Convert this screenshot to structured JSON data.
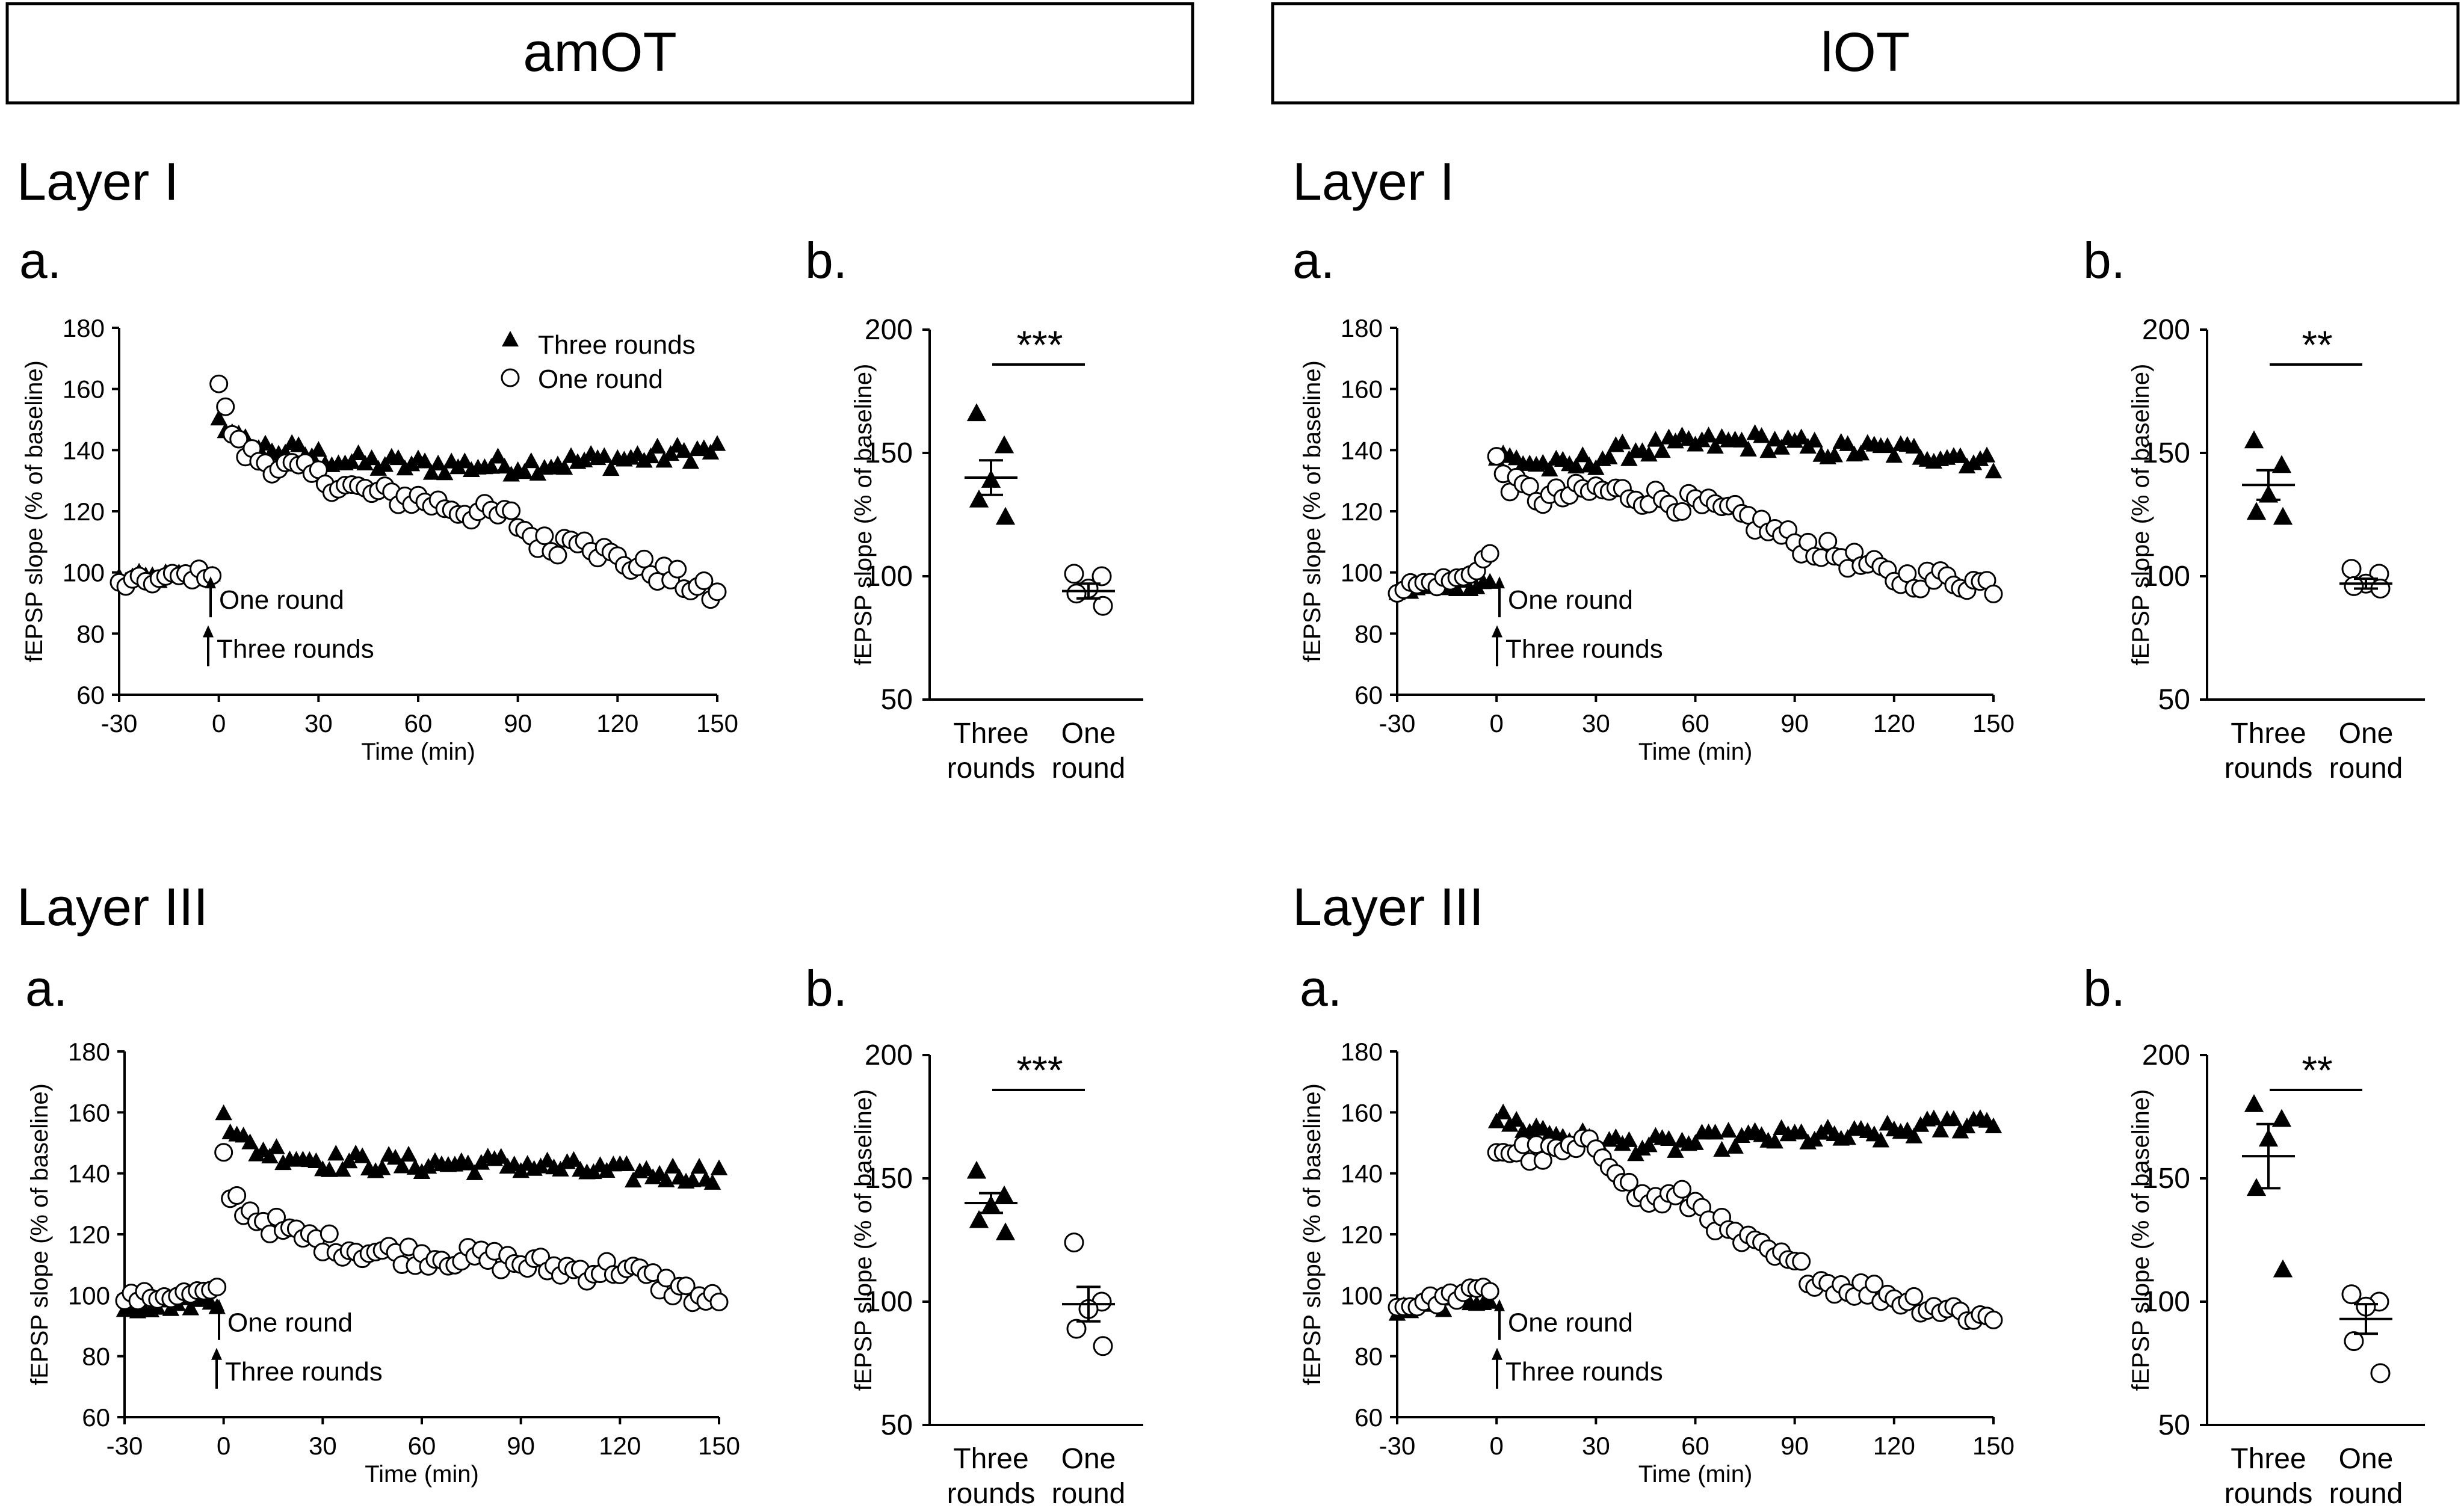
{
  "headers": [
    "amOT",
    "lOT"
  ],
  "layer_labels": [
    "Layer I",
    "Layer III"
  ],
  "panel_letters": {
    "a": "a.",
    "b": "b."
  },
  "legend": {
    "three": "Three rounds",
    "one": "One round"
  },
  "annotations": {
    "one_round": "One round",
    "three_rounds": "Three rounds"
  },
  "chart_data": [
    {
      "id": "amOT-I-a",
      "type": "scatter",
      "region": "amOT",
      "layer": "Layer I",
      "panel": "a.",
      "xlabel": "Time (min)",
      "ylabel": "fEPSP slope (% of baseline)",
      "xlim": [
        -30,
        150
      ],
      "ylim": [
        60,
        180
      ],
      "xticks": [
        "-30",
        "0",
        "30",
        "60",
        "90",
        "120",
        "150"
      ],
      "yticks": [
        "60",
        "80",
        "100",
        "120",
        "140",
        "160",
        "180"
      ],
      "series": [
        {
          "name": "Three rounds",
          "marker": "filled-triangle",
          "baseline": [
            [
              -30,
              98
            ],
            [
              -2,
              99
            ]
          ],
          "segments": [
            [
              0,
              152
            ],
            [
              4,
              144
            ],
            [
              10,
              141
            ],
            [
              20,
              140
            ],
            [
              40,
              136
            ],
            [
              60,
              135
            ],
            [
              90,
              135
            ],
            [
              120,
              137
            ],
            [
              150,
              140
            ]
          ]
        },
        {
          "name": "One round",
          "marker": "open-circle",
          "baseline": [
            [
              -30,
              96
            ],
            [
              -2,
              100
            ]
          ],
          "segments": [
            [
              0,
              162
            ],
            [
              2,
              152
            ],
            [
              6,
              141
            ],
            [
              12,
              137
            ],
            [
              30,
              131
            ],
            [
              45,
              126
            ],
            [
              60,
              124
            ],
            [
              75,
              120
            ],
            [
              88,
              118
            ],
            [
              95,
              111
            ],
            [
              100,
              108
            ],
            [
              105,
              111
            ],
            [
              110,
              113
            ],
            [
              113,
              108
            ],
            [
              120,
              104
            ],
            [
              135,
              99
            ],
            [
              150,
              92
            ]
          ]
        }
      ]
    },
    {
      "id": "amOT-I-b",
      "type": "scatter",
      "region": "amOT",
      "layer": "Layer I",
      "panel": "b.",
      "categories": [
        "Three\nrounds",
        "One\nround"
      ],
      "ylabel": "fEPSP slope (% of baseline)",
      "ylim": [
        50,
        200
      ],
      "yticks": [
        "50",
        "100",
        "150",
        "200"
      ],
      "significance": "***",
      "groups": [
        {
          "name": "Three rounds",
          "marker": "filled-triangle",
          "points": [
            166,
            153,
            139,
            131,
            124
          ],
          "mean": 140,
          "sem": 7
        },
        {
          "name": "One round",
          "marker": "open-circle",
          "points": [
            101,
            100,
            95,
            93,
            88
          ],
          "mean": 94,
          "sem": 3
        }
      ]
    },
    {
      "id": "lOT-I-a",
      "type": "scatter",
      "region": "lOT",
      "layer": "Layer I",
      "panel": "a.",
      "xlabel": "Time (min)",
      "ylabel": "fEPSP slope (% of baseline)",
      "xlim": [
        -30,
        150
      ],
      "ylim": [
        60,
        180
      ],
      "xticks": [
        "-30",
        "0",
        "30",
        "60",
        "90",
        "120",
        "150"
      ],
      "yticks": [
        "60",
        "80",
        "100",
        "120",
        "140",
        "160",
        "180"
      ],
      "series": [
        {
          "name": "Three rounds",
          "marker": "filled-triangle",
          "baseline": [
            [
              -30,
              94
            ],
            [
              -2,
              97
            ]
          ],
          "segments": [
            [
              0,
              138
            ],
            [
              20,
              134
            ],
            [
              40,
              140
            ],
            [
              60,
              142
            ],
            [
              80,
              143
            ],
            [
              100,
              140
            ],
            [
              120,
              140
            ],
            [
              140,
              138
            ],
            [
              150,
              135
            ]
          ]
        },
        {
          "name": "One round",
          "marker": "open-circle",
          "baseline": [
            [
              -30,
              95
            ],
            [
              -10,
              98
            ],
            [
              -2,
              106
            ]
          ],
          "segments": [
            [
              0,
              136
            ],
            [
              5,
              128
            ],
            [
              15,
              124
            ],
            [
              30,
              127
            ],
            [
              45,
              125
            ],
            [
              60,
              122
            ],
            [
              75,
              118
            ],
            [
              90,
              110
            ],
            [
              105,
              105
            ],
            [
              120,
              98
            ],
            [
              135,
              98
            ],
            [
              150,
              96
            ]
          ]
        }
      ]
    },
    {
      "id": "lOT-I-b",
      "type": "scatter",
      "region": "lOT",
      "layer": "Layer I",
      "panel": "b.",
      "categories": [
        "Three\nrounds",
        "One\nround"
      ],
      "ylabel": "fEPSP slope (% of baseline)",
      "ylim": [
        50,
        200
      ],
      "yticks": [
        "50",
        "100",
        "150",
        "200"
      ],
      "significance": "**",
      "groups": [
        {
          "name": "Three rounds",
          "marker": "filled-triangle",
          "points": [
            155,
            145,
            133,
            126,
            124
          ],
          "mean": 137,
          "sem": 6
        },
        {
          "name": "One round",
          "marker": "open-circle",
          "points": [
            103,
            101,
            97,
            96,
            95
          ],
          "mean": 97,
          "sem": 2
        }
      ]
    },
    {
      "id": "amOT-III-a",
      "type": "scatter",
      "region": "amOT",
      "layer": "Layer III",
      "panel": "a.",
      "xlabel": "Time (min)",
      "ylabel": "fEPSP slope (% of baseline)",
      "xlim": [
        -30,
        150
      ],
      "ylim": [
        60,
        180
      ],
      "xticks": [
        "-30",
        "0",
        "30",
        "60",
        "90",
        "120",
        "150"
      ],
      "yticks": [
        "60",
        "80",
        "100",
        "120",
        "140",
        "160",
        "180"
      ],
      "series": [
        {
          "name": "Three rounds",
          "marker": "filled-triangle",
          "baseline": [
            [
              -30,
              96
            ],
            [
              -2,
              98
            ]
          ],
          "segments": [
            [
              0,
              162
            ],
            [
              3,
              152
            ],
            [
              10,
              148
            ],
            [
              30,
              144
            ],
            [
              60,
              143
            ],
            [
              90,
              143
            ],
            [
              120,
              140
            ],
            [
              150,
              140
            ]
          ]
        },
        {
          "name": "One round",
          "marker": "open-circle",
          "baseline": [
            [
              -30,
              99
            ],
            [
              -2,
              101
            ]
          ],
          "segments": [
            [
              0,
              145
            ],
            [
              2,
              133
            ],
            [
              8,
              127
            ],
            [
              20,
              120
            ],
            [
              40,
              115
            ],
            [
              60,
              113
            ],
            [
              80,
              112
            ],
            [
              100,
              109
            ],
            [
              110,
              108
            ],
            [
              120,
              109
            ],
            [
              135,
              103
            ],
            [
              150,
              97
            ]
          ]
        }
      ]
    },
    {
      "id": "amOT-III-b",
      "type": "scatter",
      "region": "amOT",
      "layer": "Layer III",
      "panel": "b.",
      "categories": [
        "Three\nrounds",
        "One\nround"
      ],
      "ylabel": "fEPSP slope (% of baseline)",
      "ylim": [
        50,
        200
      ],
      "yticks": [
        "50",
        "100",
        "150",
        "200"
      ],
      "significance": "***",
      "groups": [
        {
          "name": "Three rounds",
          "marker": "filled-triangle",
          "points": [
            153,
            143,
            139,
            133,
            128
          ],
          "mean": 140,
          "sem": 4
        },
        {
          "name": "One round",
          "marker": "open-circle",
          "points": [
            124,
            100,
            97,
            89,
            82
          ],
          "mean": 99,
          "sem": 7
        }
      ]
    },
    {
      "id": "lOT-III-a",
      "type": "scatter",
      "region": "lOT",
      "layer": "Layer III",
      "panel": "a.",
      "xlabel": "Time (min)",
      "ylabel": "fEPSP slope (% of baseline)",
      "xlim": [
        -30,
        150
      ],
      "ylim": [
        60,
        180
      ],
      "xticks": [
        "-30",
        "0",
        "30",
        "60",
        "90",
        "120",
        "150"
      ],
      "yticks": [
        "60",
        "80",
        "100",
        "120",
        "140",
        "160",
        "180"
      ],
      "series": [
        {
          "name": "Three rounds",
          "marker": "filled-triangle",
          "baseline": [
            [
              -30,
              95
            ],
            [
              -2,
              99
            ]
          ],
          "segments": [
            [
              0,
              158
            ],
            [
              10,
              155
            ],
            [
              30,
              150
            ],
            [
              50,
              149
            ],
            [
              70,
              151
            ],
            [
              90,
              152
            ],
            [
              110,
              152
            ],
            [
              130,
              155
            ],
            [
              150,
              158
            ]
          ]
        },
        {
          "name": "One round",
          "marker": "open-circle",
          "baseline": [
            [
              -30,
              96
            ],
            [
              -2,
              102
            ]
          ],
          "segments": [
            [
              0,
              148
            ],
            [
              15,
              146
            ],
            [
              30,
              149
            ],
            [
              37,
              142
            ],
            [
              40,
              135
            ],
            [
              45,
              131
            ],
            [
              55,
              132
            ],
            [
              62,
              129
            ],
            [
              70,
              120
            ],
            [
              85,
              112
            ],
            [
              100,
              104
            ],
            [
              115,
              101
            ],
            [
              130,
              97
            ],
            [
              150,
              92
            ]
          ]
        }
      ]
    },
    {
      "id": "lOT-III-b",
      "type": "scatter",
      "region": "lOT",
      "layer": "Layer III",
      "panel": "b.",
      "categories": [
        "Three\nrounds",
        "One\nround"
      ],
      "ylabel": "fEPSP slope (% of baseline)",
      "ylim": [
        50,
        200
      ],
      "yticks": [
        "50",
        "100",
        "150",
        "200"
      ],
      "significance": "**",
      "groups": [
        {
          "name": "Three rounds",
          "marker": "filled-triangle",
          "points": [
            180,
            174,
            166,
            146,
            113
          ],
          "mean": 159,
          "sem": 13
        },
        {
          "name": "One round",
          "marker": "open-circle",
          "points": [
            103,
            100,
            98,
            84,
            71
          ],
          "mean": 93,
          "sem": 6
        }
      ]
    }
  ]
}
